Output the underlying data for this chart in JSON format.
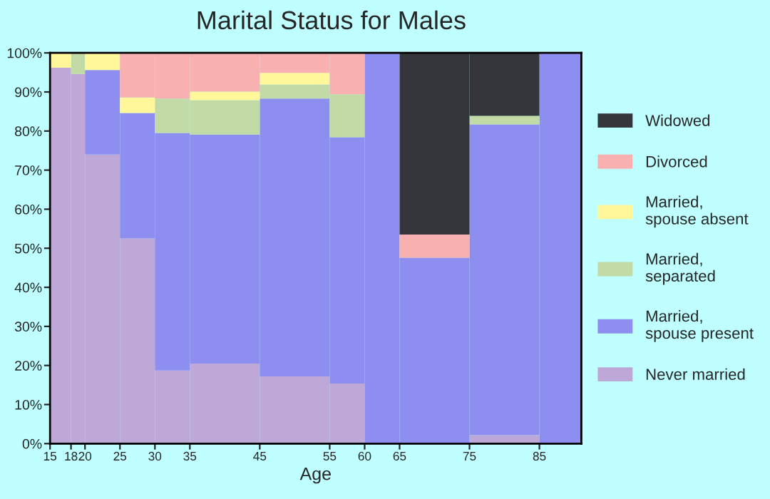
{
  "chart_data": {
    "type": "bar",
    "stacked": true,
    "title": "Marital Status for Males",
    "xlabel": "Age",
    "x": [
      16.5,
      19,
      22.5,
      27.5,
      32.5,
      40,
      50,
      57.5,
      62.5,
      70,
      80,
      88
    ],
    "xlim": [
      15,
      91
    ],
    "xticks": [
      15,
      18,
      20,
      25,
      30,
      35,
      45,
      55,
      60,
      65,
      75,
      85
    ],
    "ylim": [
      0,
      100
    ],
    "yticks": [
      {
        "value": 0,
        "label": "0%"
      },
      {
        "value": 10,
        "label": "10%"
      },
      {
        "value": 20,
        "label": "20%"
      },
      {
        "value": 30,
        "label": "30%"
      },
      {
        "value": 40,
        "label": "40%"
      },
      {
        "value": 50,
        "label": "50%"
      },
      {
        "value": 60,
        "label": "60%"
      },
      {
        "value": 70,
        "label": "70%"
      },
      {
        "value": 80,
        "label": "80%"
      },
      {
        "value": 90,
        "label": "90%"
      },
      {
        "value": 100,
        "label": "100%"
      }
    ],
    "legend": "right",
    "series": [
      {
        "name": "Never married",
        "color": "#bea8d8",
        "values": [
          96.2,
          94.6,
          74.0,
          52.5,
          18.7,
          20.5,
          17.2,
          15.4,
          0,
          0,
          2.2,
          0
        ]
      },
      {
        "name": "Married,\nspouse present",
        "color": "#8e8ef0",
        "values": [
          0,
          0,
          21.6,
          32.1,
          60.8,
          58.6,
          71.1,
          63.0,
          100,
          47.6,
          79.5,
          100
        ]
      },
      {
        "name": "Married,\nseparated",
        "color": "#c1daa6",
        "values": [
          0,
          5.4,
          0,
          0,
          8.8,
          8.8,
          3.6,
          11.0,
          0,
          0,
          2.2,
          0
        ]
      },
      {
        "name": "Married,\nspouse absent",
        "color": "#fff799",
        "values": [
          3.8,
          0,
          4.4,
          4.0,
          0,
          2.2,
          3.0,
          0,
          0,
          0,
          0,
          0
        ]
      },
      {
        "name": "Divorced",
        "color": "#f9b0b0",
        "values": [
          0,
          0,
          0,
          11.4,
          11.7,
          9.9,
          5.1,
          10.6,
          0,
          5.9,
          0,
          0
        ]
      },
      {
        "name": "Widowed",
        "color": "#35363b",
        "values": [
          0,
          0,
          0,
          0,
          0,
          0,
          0,
          0,
          0,
          46.5,
          16.1,
          0
        ]
      }
    ]
  }
}
